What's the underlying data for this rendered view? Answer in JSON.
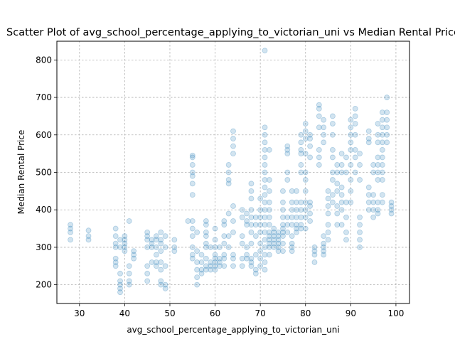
{
  "chart_data": {
    "type": "scatter",
    "title": "Scatter Plot of avg_school_percentage_applying_to_victorian_uni vs Median Rental Price",
    "xlabel": "avg_school_percentage_applying_to_victorian_uni",
    "ylabel": "Median Rental Price",
    "xlim": [
      25,
      103
    ],
    "ylim": [
      150,
      850
    ],
    "xticks": [
      30,
      40,
      50,
      60,
      70,
      80,
      90,
      100
    ],
    "yticks": [
      200,
      300,
      400,
      500,
      600,
      700,
      800
    ],
    "grid": true,
    "legend": "none",
    "point_color": "#1f77b4",
    "point_alpha": 0.2,
    "points": [
      [
        28,
        320
      ],
      [
        28,
        340
      ],
      [
        28,
        350
      ],
      [
        28,
        360
      ],
      [
        32,
        320
      ],
      [
        32,
        330
      ],
      [
        32,
        345
      ],
      [
        38,
        350
      ],
      [
        38,
        330
      ],
      [
        38,
        310
      ],
      [
        38,
        300
      ],
      [
        38,
        270
      ],
      [
        38,
        260
      ],
      [
        38,
        250
      ],
      [
        39,
        200
      ],
      [
        39,
        190
      ],
      [
        39,
        210
      ],
      [
        39,
        180
      ],
      [
        39,
        230
      ],
      [
        39,
        320
      ],
      [
        39,
        300
      ],
      [
        40,
        330
      ],
      [
        40,
        310
      ],
      [
        40,
        300
      ],
      [
        40,
        290
      ],
      [
        40,
        320
      ],
      [
        41,
        370
      ],
      [
        41,
        250
      ],
      [
        41,
        230
      ],
      [
        41,
        200
      ],
      [
        41,
        210
      ],
      [
        42,
        290
      ],
      [
        42,
        280
      ],
      [
        42,
        270
      ],
      [
        45,
        340
      ],
      [
        45,
        330
      ],
      [
        45,
        320
      ],
      [
        45,
        300
      ],
      [
        45,
        250
      ],
      [
        45,
        230
      ],
      [
        45,
        210
      ],
      [
        46,
        320
      ],
      [
        46,
        310
      ],
      [
        46,
        300
      ],
      [
        46,
        260
      ],
      [
        47,
        330
      ],
      [
        47,
        320
      ],
      [
        47,
        300
      ],
      [
        47,
        280
      ],
      [
        47,
        260
      ],
      [
        47,
        250
      ],
      [
        48,
        340
      ],
      [
        48,
        320
      ],
      [
        48,
        310
      ],
      [
        48,
        290
      ],
      [
        48,
        260
      ],
      [
        48,
        240
      ],
      [
        48,
        210
      ],
      [
        48,
        200
      ],
      [
        49,
        330
      ],
      [
        49,
        300
      ],
      [
        49,
        250
      ],
      [
        49,
        200
      ],
      [
        49,
        190
      ],
      [
        51,
        320
      ],
      [
        51,
        300
      ],
      [
        51,
        290
      ],
      [
        54,
        370
      ],
      [
        55,
        545
      ],
      [
        55,
        540
      ],
      [
        55,
        520
      ],
      [
        55,
        500
      ],
      [
        55,
        490
      ],
      [
        55,
        470
      ],
      [
        55,
        440
      ],
      [
        55,
        370
      ],
      [
        55,
        350
      ],
      [
        55,
        330
      ],
      [
        55,
        300
      ],
      [
        55,
        280
      ],
      [
        55,
        270
      ],
      [
        56,
        340
      ],
      [
        56,
        290
      ],
      [
        56,
        260
      ],
      [
        56,
        240
      ],
      [
        56,
        220
      ],
      [
        56,
        200
      ],
      [
        57,
        280
      ],
      [
        57,
        260
      ],
      [
        57,
        240
      ],
      [
        57,
        230
      ],
      [
        58,
        370
      ],
      [
        58,
        360
      ],
      [
        58,
        340
      ],
      [
        58,
        330
      ],
      [
        58,
        310
      ],
      [
        58,
        300
      ],
      [
        58,
        270
      ],
      [
        58,
        250
      ],
      [
        58,
        240
      ],
      [
        59,
        300
      ],
      [
        59,
        260
      ],
      [
        59,
        250
      ],
      [
        59,
        240
      ],
      [
        60,
        350
      ],
      [
        60,
        320
      ],
      [
        60,
        300
      ],
      [
        60,
        280
      ],
      [
        60,
        270
      ],
      [
        60,
        260
      ],
      [
        60,
        250
      ],
      [
        60,
        240
      ],
      [
        61,
        300
      ],
      [
        61,
        270
      ],
      [
        61,
        260
      ],
      [
        61,
        250
      ],
      [
        62,
        370
      ],
      [
        62,
        360
      ],
      [
        62,
        330
      ],
      [
        62,
        310
      ],
      [
        62,
        280
      ],
      [
        62,
        270
      ],
      [
        62,
        250
      ],
      [
        63,
        520
      ],
      [
        63,
        500
      ],
      [
        63,
        480
      ],
      [
        63,
        470
      ],
      [
        63,
        390
      ],
      [
        63,
        330
      ],
      [
        63,
        300
      ],
      [
        64,
        610
      ],
      [
        64,
        590
      ],
      [
        64,
        570
      ],
      [
        64,
        550
      ],
      [
        64,
        410
      ],
      [
        64,
        370
      ],
      [
        64,
        340
      ],
      [
        64,
        280
      ],
      [
        64,
        270
      ],
      [
        64,
        250
      ],
      [
        66,
        400
      ],
      [
        66,
        380
      ],
      [
        66,
        330
      ],
      [
        66,
        310
      ],
      [
        66,
        270
      ],
      [
        66,
        250
      ],
      [
        67,
        390
      ],
      [
        67,
        370
      ],
      [
        67,
        360
      ],
      [
        67,
        300
      ],
      [
        67,
        280
      ],
      [
        67,
        270
      ],
      [
        68,
        470
      ],
      [
        68,
        450
      ],
      [
        68,
        430
      ],
      [
        68,
        400
      ],
      [
        68,
        380
      ],
      [
        68,
        360
      ],
      [
        68,
        340
      ],
      [
        68,
        310
      ],
      [
        68,
        270
      ],
      [
        68,
        260
      ],
      [
        68,
        250
      ],
      [
        69,
        380
      ],
      [
        69,
        360
      ],
      [
        69,
        330
      ],
      [
        69,
        280
      ],
      [
        69,
        240
      ],
      [
        69,
        230
      ],
      [
        70,
        430
      ],
      [
        70,
        400
      ],
      [
        70,
        380
      ],
      [
        70,
        360
      ],
      [
        70,
        340
      ],
      [
        70,
        310
      ],
      [
        70,
        290
      ],
      [
        70,
        270
      ],
      [
        70,
        250
      ],
      [
        71,
        825
      ],
      [
        71,
        620
      ],
      [
        71,
        600
      ],
      [
        71,
        580
      ],
      [
        71,
        560
      ],
      [
        71,
        540
      ],
      [
        71,
        520
      ],
      [
        71,
        500
      ],
      [
        71,
        480
      ],
      [
        71,
        460
      ],
      [
        71,
        440
      ],
      [
        71,
        420
      ],
      [
        71,
        400
      ],
      [
        71,
        380
      ],
      [
        71,
        360
      ],
      [
        71,
        340
      ],
      [
        71,
        320
      ],
      [
        71,
        300
      ],
      [
        71,
        280
      ],
      [
        71,
        260
      ],
      [
        71,
        240
      ],
      [
        72,
        560
      ],
      [
        72,
        480
      ],
      [
        72,
        450
      ],
      [
        72,
        420
      ],
      [
        72,
        400
      ],
      [
        72,
        380
      ],
      [
        72,
        360
      ],
      [
        72,
        340
      ],
      [
        72,
        330
      ],
      [
        72,
        320
      ],
      [
        72,
        310
      ],
      [
        72,
        300
      ],
      [
        72,
        280
      ],
      [
        73,
        350
      ],
      [
        73,
        340
      ],
      [
        73,
        330
      ],
      [
        73,
        320
      ],
      [
        73,
        310
      ],
      [
        73,
        300
      ],
      [
        74,
        340
      ],
      [
        74,
        330
      ],
      [
        74,
        320
      ],
      [
        74,
        310
      ],
      [
        74,
        300
      ],
      [
        74,
        290
      ],
      [
        75,
        450
      ],
      [
        75,
        420
      ],
      [
        75,
        400
      ],
      [
        75,
        380
      ],
      [
        75,
        360
      ],
      [
        75,
        350
      ],
      [
        75,
        340
      ],
      [
        75,
        330
      ],
      [
        75,
        310
      ],
      [
        75,
        290
      ],
      [
        76,
        570
      ],
      [
        76,
        560
      ],
      [
        76,
        550
      ],
      [
        76,
        500
      ],
      [
        76,
        480
      ],
      [
        76,
        380
      ],
      [
        76,
        360
      ],
      [
        76,
        340
      ],
      [
        77,
        450
      ],
      [
        77,
        420
      ],
      [
        77,
        400
      ],
      [
        77,
        380
      ],
      [
        77,
        360
      ],
      [
        77,
        330
      ],
      [
        77,
        310
      ],
      [
        77,
        300
      ],
      [
        77,
        290
      ],
      [
        78,
        450
      ],
      [
        78,
        420
      ],
      [
        78,
        400
      ],
      [
        78,
        380
      ],
      [
        78,
        360
      ],
      [
        78,
        350
      ],
      [
        78,
        340
      ],
      [
        79,
        600
      ],
      [
        79,
        580
      ],
      [
        79,
        560
      ],
      [
        79,
        550
      ],
      [
        79,
        520
      ],
      [
        79,
        500
      ],
      [
        79,
        420
      ],
      [
        79,
        400
      ],
      [
        79,
        380
      ],
      [
        79,
        360
      ],
      [
        79,
        350
      ],
      [
        80,
        630
      ],
      [
        80,
        610
      ],
      [
        80,
        590
      ],
      [
        80,
        550
      ],
      [
        80,
        500
      ],
      [
        80,
        480
      ],
      [
        80,
        450
      ],
      [
        80,
        420
      ],
      [
        80,
        400
      ],
      [
        80,
        380
      ],
      [
        80,
        350
      ],
      [
        81,
        600
      ],
      [
        81,
        590
      ],
      [
        81,
        570
      ],
      [
        81,
        540
      ],
      [
        81,
        420
      ],
      [
        81,
        410
      ],
      [
        81,
        390
      ],
      [
        81,
        370
      ],
      [
        82,
        300
      ],
      [
        82,
        290
      ],
      [
        82,
        280
      ],
      [
        82,
        260
      ],
      [
        83,
        680
      ],
      [
        83,
        670
      ],
      [
        83,
        650
      ],
      [
        83,
        620
      ],
      [
        83,
        560
      ],
      [
        83,
        540
      ],
      [
        83,
        520
      ],
      [
        84,
        640
      ],
      [
        84,
        620
      ],
      [
        84,
        600
      ],
      [
        84,
        580
      ],
      [
        84,
        330
      ],
      [
        84,
        310
      ],
      [
        84,
        300
      ],
      [
        84,
        290
      ],
      [
        84,
        280
      ],
      [
        85,
        450
      ],
      [
        85,
        430
      ],
      [
        85,
        410
      ],
      [
        85,
        390
      ],
      [
        85,
        360
      ],
      [
        85,
        340
      ],
      [
        85,
        320
      ],
      [
        86,
        650
      ],
      [
        86,
        630
      ],
      [
        86,
        600
      ],
      [
        86,
        560
      ],
      [
        86,
        540
      ],
      [
        86,
        500
      ],
      [
        86,
        480
      ],
      [
        86,
        440
      ],
      [
        86,
        420
      ],
      [
        87,
        520
      ],
      [
        87,
        500
      ],
      [
        87,
        470
      ],
      [
        87,
        450
      ],
      [
        87,
        410
      ],
      [
        87,
        390
      ],
      [
        87,
        360
      ],
      [
        88,
        550
      ],
      [
        88,
        520
      ],
      [
        88,
        500
      ],
      [
        88,
        460
      ],
      [
        88,
        440
      ],
      [
        88,
        420
      ],
      [
        88,
        400
      ],
      [
        88,
        360
      ],
      [
        89,
        540
      ],
      [
        89,
        500
      ],
      [
        89,
        420
      ],
      [
        89,
        380
      ],
      [
        89,
        340
      ],
      [
        89,
        320
      ],
      [
        90,
        640
      ],
      [
        90,
        620
      ],
      [
        90,
        600
      ],
      [
        90,
        580
      ],
      [
        90,
        560
      ],
      [
        90,
        520
      ],
      [
        90,
        480
      ],
      [
        90,
        450
      ],
      [
        90,
        420
      ],
      [
        91,
        670
      ],
      [
        91,
        650
      ],
      [
        91,
        630
      ],
      [
        91,
        600
      ],
      [
        91,
        560
      ],
      [
        91,
        540
      ],
      [
        91,
        500
      ],
      [
        92,
        550
      ],
      [
        92,
        520
      ],
      [
        92,
        480
      ],
      [
        92,
        380
      ],
      [
        92,
        360
      ],
      [
        92,
        340
      ],
      [
        92,
        320
      ],
      [
        92,
        300
      ],
      [
        94,
        610
      ],
      [
        94,
        590
      ],
      [
        94,
        580
      ],
      [
        94,
        460
      ],
      [
        94,
        440
      ],
      [
        94,
        420
      ],
      [
        94,
        400
      ],
      [
        95,
        520
      ],
      [
        95,
        500
      ],
      [
        95,
        440
      ],
      [
        95,
        420
      ],
      [
        95,
        400
      ],
      [
        95,
        380
      ],
      [
        96,
        630
      ],
      [
        96,
        600
      ],
      [
        96,
        580
      ],
      [
        96,
        540
      ],
      [
        96,
        520
      ],
      [
        96,
        500
      ],
      [
        96,
        480
      ],
      [
        96,
        420
      ],
      [
        96,
        400
      ],
      [
        96,
        390
      ],
      [
        97,
        660
      ],
      [
        97,
        640
      ],
      [
        97,
        620
      ],
      [
        97,
        600
      ],
      [
        97,
        580
      ],
      [
        97,
        560
      ],
      [
        97,
        540
      ],
      [
        97,
        520
      ],
      [
        97,
        500
      ],
      [
        97,
        480
      ],
      [
        97,
        440
      ],
      [
        97,
        420
      ],
      [
        98,
        700
      ],
      [
        98,
        660
      ],
      [
        98,
        640
      ],
      [
        98,
        620
      ],
      [
        98,
        600
      ],
      [
        98,
        580
      ],
      [
        99,
        420
      ],
      [
        99,
        410
      ],
      [
        99,
        400
      ],
      [
        99,
        390
      ]
    ]
  }
}
